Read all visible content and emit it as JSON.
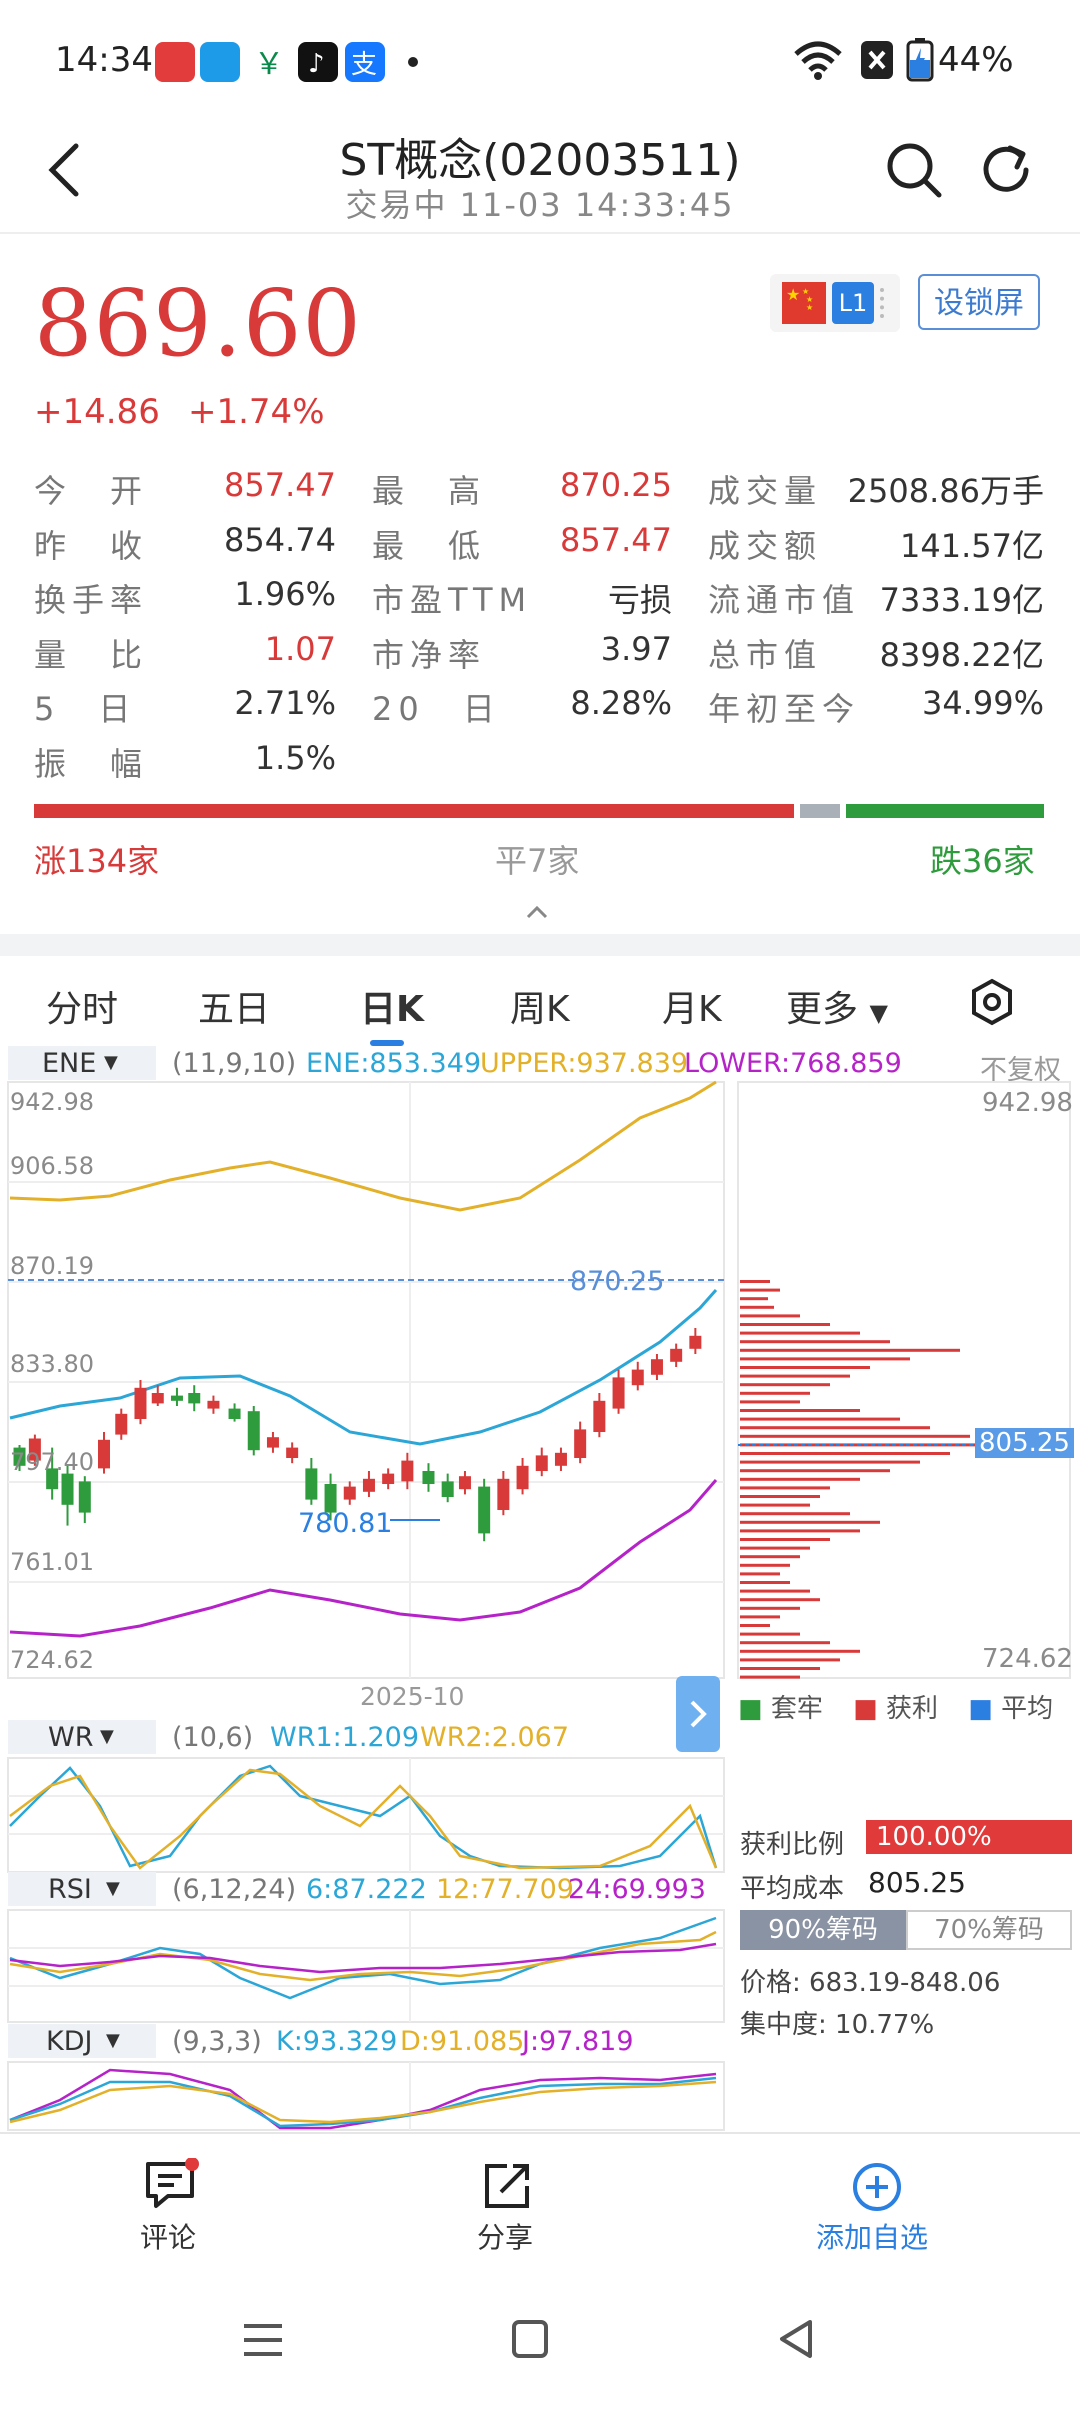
{
  "status_bar": {
    "time": "14:34",
    "battery": "44%"
  },
  "header": {
    "title": "ST概念(02003511)",
    "status": "交易中",
    "datetime": "11-03 14:33:45"
  },
  "price": {
    "last": "869.60",
    "change": "+14.86",
    "change_pct": "+1.74%",
    "market_badge": "L1",
    "lock_button": "设锁屏"
  },
  "stats": [
    [
      {
        "label": "今　开",
        "value": "857.47",
        "color": "red"
      },
      {
        "label": "最　高",
        "value": "870.25",
        "color": "red"
      },
      {
        "label": "成交量",
        "value": "2508.86万手",
        "color": "dark"
      }
    ],
    [
      {
        "label": "昨　收",
        "value": "854.74",
        "color": "dark"
      },
      {
        "label": "最　低",
        "value": "857.47",
        "color": "red"
      },
      {
        "label": "成交额",
        "value": "141.57亿",
        "color": "dark"
      }
    ],
    [
      {
        "label": "换手率",
        "value": "1.96%",
        "color": "dark"
      },
      {
        "label": "市盈TTM",
        "value": "亏损",
        "color": "dark"
      },
      {
        "label": "流通市值",
        "value": "7333.19亿",
        "color": "dark"
      }
    ],
    [
      {
        "label": "量　比",
        "value": "1.07",
        "color": "red"
      },
      {
        "label": "市净率",
        "value": "3.97",
        "color": "dark"
      },
      {
        "label": "总市值",
        "value": "8398.22亿",
        "color": "dark"
      }
    ],
    [
      {
        "label": "5　日",
        "value": "2.71%",
        "color": "dark"
      },
      {
        "label": "20　日",
        "value": "8.28%",
        "color": "dark"
      },
      {
        "label": "年初至今",
        "value": "34.99%",
        "color": "dark"
      }
    ],
    [
      {
        "label": "振　幅",
        "value": "1.5%",
        "color": "dark"
      }
    ]
  ],
  "breadth": {
    "up": "涨134家",
    "flat": "平7家",
    "down": "跌36家"
  },
  "tabs": [
    "分时",
    "五日",
    "日K",
    "周K",
    "月K",
    "更多"
  ],
  "active_tab": "日K",
  "chart": {
    "ene": {
      "name": "ENE",
      "params": "(11,9,10)",
      "ene": "ENE:853.349",
      "upper": "UPPER:937.839",
      "lower": "LOWER:768.859",
      "adjust": "不复权"
    },
    "y_labels": [
      "942.98",
      "906.58",
      "870.19",
      "833.80",
      "797.40",
      "761.01",
      "724.62"
    ],
    "marker_high": "870.25",
    "marker_low": "780.81",
    "date_label": "2025-10",
    "chip_axis_top": "942.98",
    "chip_axis_bottom": "724.62",
    "chip_avg_marker": "805.25",
    "chip_legend": [
      "套牢",
      "获利",
      "平均"
    ],
    "wr": {
      "name": "WR",
      "params": "(10,6)",
      "wr1": "WR1:1.209",
      "wr2": "WR2:2.067"
    },
    "rsi": {
      "name": "RSI",
      "params": "(6,12,24)",
      "r6": "6:87.222",
      "r12": "12:77.709",
      "r24": "24:69.993"
    },
    "kdj": {
      "name": "KDJ",
      "params": "(9,3,3)",
      "k": "K:93.329",
      "d": "D:91.085",
      "j": "J:97.819"
    }
  },
  "chip_stats": {
    "profit_ratio_label": "获利比例",
    "profit_ratio": "100.00%",
    "avg_cost_label": "平均成本",
    "avg_cost": "805.25",
    "tab90": "90%筹码",
    "tab70": "70%筹码",
    "price_range": "价格: 683.19-848.06",
    "concentration": "集中度: 10.77%"
  },
  "bottom_nav": {
    "comment": "评论",
    "share": "分享",
    "add": "添加自选"
  },
  "colors": {
    "up": "#d83a3a",
    "down": "#2e9b3c",
    "accent": "#2a7fe0",
    "upper": "#e3b02a",
    "lower": "#b523c8",
    "ene": "#2ca6d6"
  }
}
